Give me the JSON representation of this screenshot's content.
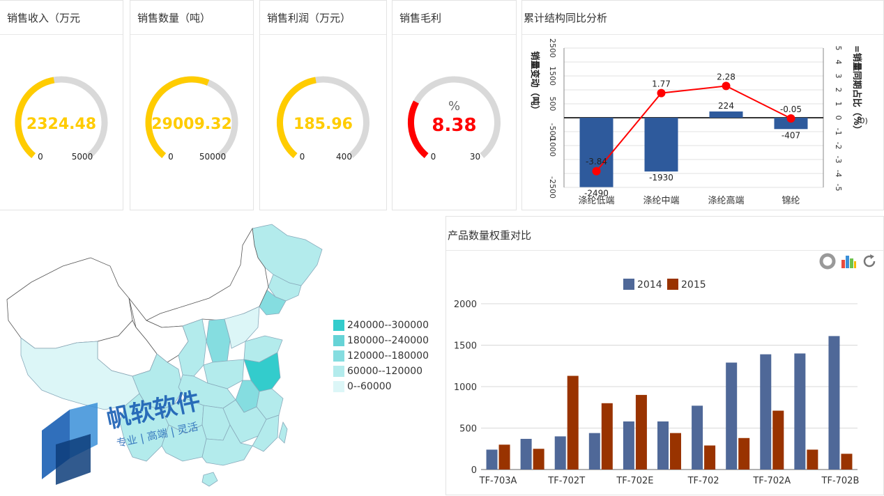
{
  "kpis": [
    {
      "title": "销售收入（万元",
      "value": "2324.48",
      "min": "0",
      "max": "5000",
      "fraction": 0.465,
      "color": "#ffcc00",
      "value_color": "#ffcc00"
    },
    {
      "title": "销售数量（吨）",
      "value": "29009.32",
      "min": "0",
      "max": "50000",
      "fraction": 0.58,
      "color": "#ffcc00",
      "value_color": "#ffcc00"
    },
    {
      "title": "销售利润（万元）",
      "value": "185.96",
      "min": "0",
      "max": "400",
      "fraction": 0.465,
      "color": "#ffcc00",
      "value_color": "#ffcc00"
    },
    {
      "title": "销售毛利",
      "value": "8.38",
      "unit": "%",
      "min": "0",
      "max": "30",
      "fraction": 0.28,
      "color": "#ff0000",
      "value_color": "#ff0000"
    }
  ],
  "structure_chart": {
    "title": "累计结构同比分析",
    "left_axis_label": "销量变动（吨）",
    "right_axis_label": "=销量同期占比（%）",
    "right_axis_unit": "(0)",
    "left_ticks": [
      "2500",
      "1500",
      "500",
      "-500",
      "-1000",
      "-2500"
    ],
    "right_ticks": [
      "5",
      "4",
      "3",
      "2",
      "1",
      "0",
      "-1",
      "-2",
      "-3",
      "-4",
      "-5"
    ],
    "categories": [
      "涤纶低端",
      "涤纶中端",
      "涤纶高端",
      "锦纶"
    ],
    "bar_values": [
      -2490,
      -1930,
      224,
      -407
    ],
    "bar_labels": [
      "-2490",
      "-1930",
      "224",
      "-407"
    ],
    "line_values": [
      -3.84,
      1.77,
      2.28,
      -0.05
    ],
    "line_labels": [
      "-3.84",
      "1.77",
      "2.28",
      "-0.05"
    ]
  },
  "map": {
    "legend": [
      {
        "label": "240000--300000",
        "color": "#33cccc"
      },
      {
        "label": "180000--240000",
        "color": "#66d3d6"
      },
      {
        "label": "120000--180000",
        "color": "#85dde0"
      },
      {
        "label": "60000--120000",
        "color": "#b3ebec"
      },
      {
        "label": "0--60000",
        "color": "#dcf6f7"
      }
    ],
    "watermark_title": "帆软软件",
    "watermark_sub": "专业 | 高端 | 灵活"
  },
  "chart_data": {
    "type": "bar",
    "title": "产品数量权重对比",
    "categories": [
      "TF-703A",
      "",
      "TF-702T",
      "",
      "TF-702E",
      "",
      "TF-702",
      "",
      "TF-702A",
      "",
      "TF-702B"
    ],
    "series": [
      {
        "name": "2014",
        "color": "#4f6898",
        "values": [
          240,
          370,
          400,
          440,
          580,
          580,
          770,
          1290,
          1390,
          1400,
          1610
        ]
      },
      {
        "name": "2015",
        "color": "#993300",
        "values": [
          300,
          250,
          1130,
          800,
          900,
          440,
          290,
          380,
          710,
          240,
          190
        ]
      }
    ],
    "y_ticks": [
      "2000",
      "1500",
      "1000",
      "500",
      "0"
    ],
    "ylim": [
      0,
      2000
    ],
    "grid": true,
    "legend": "top-center"
  }
}
